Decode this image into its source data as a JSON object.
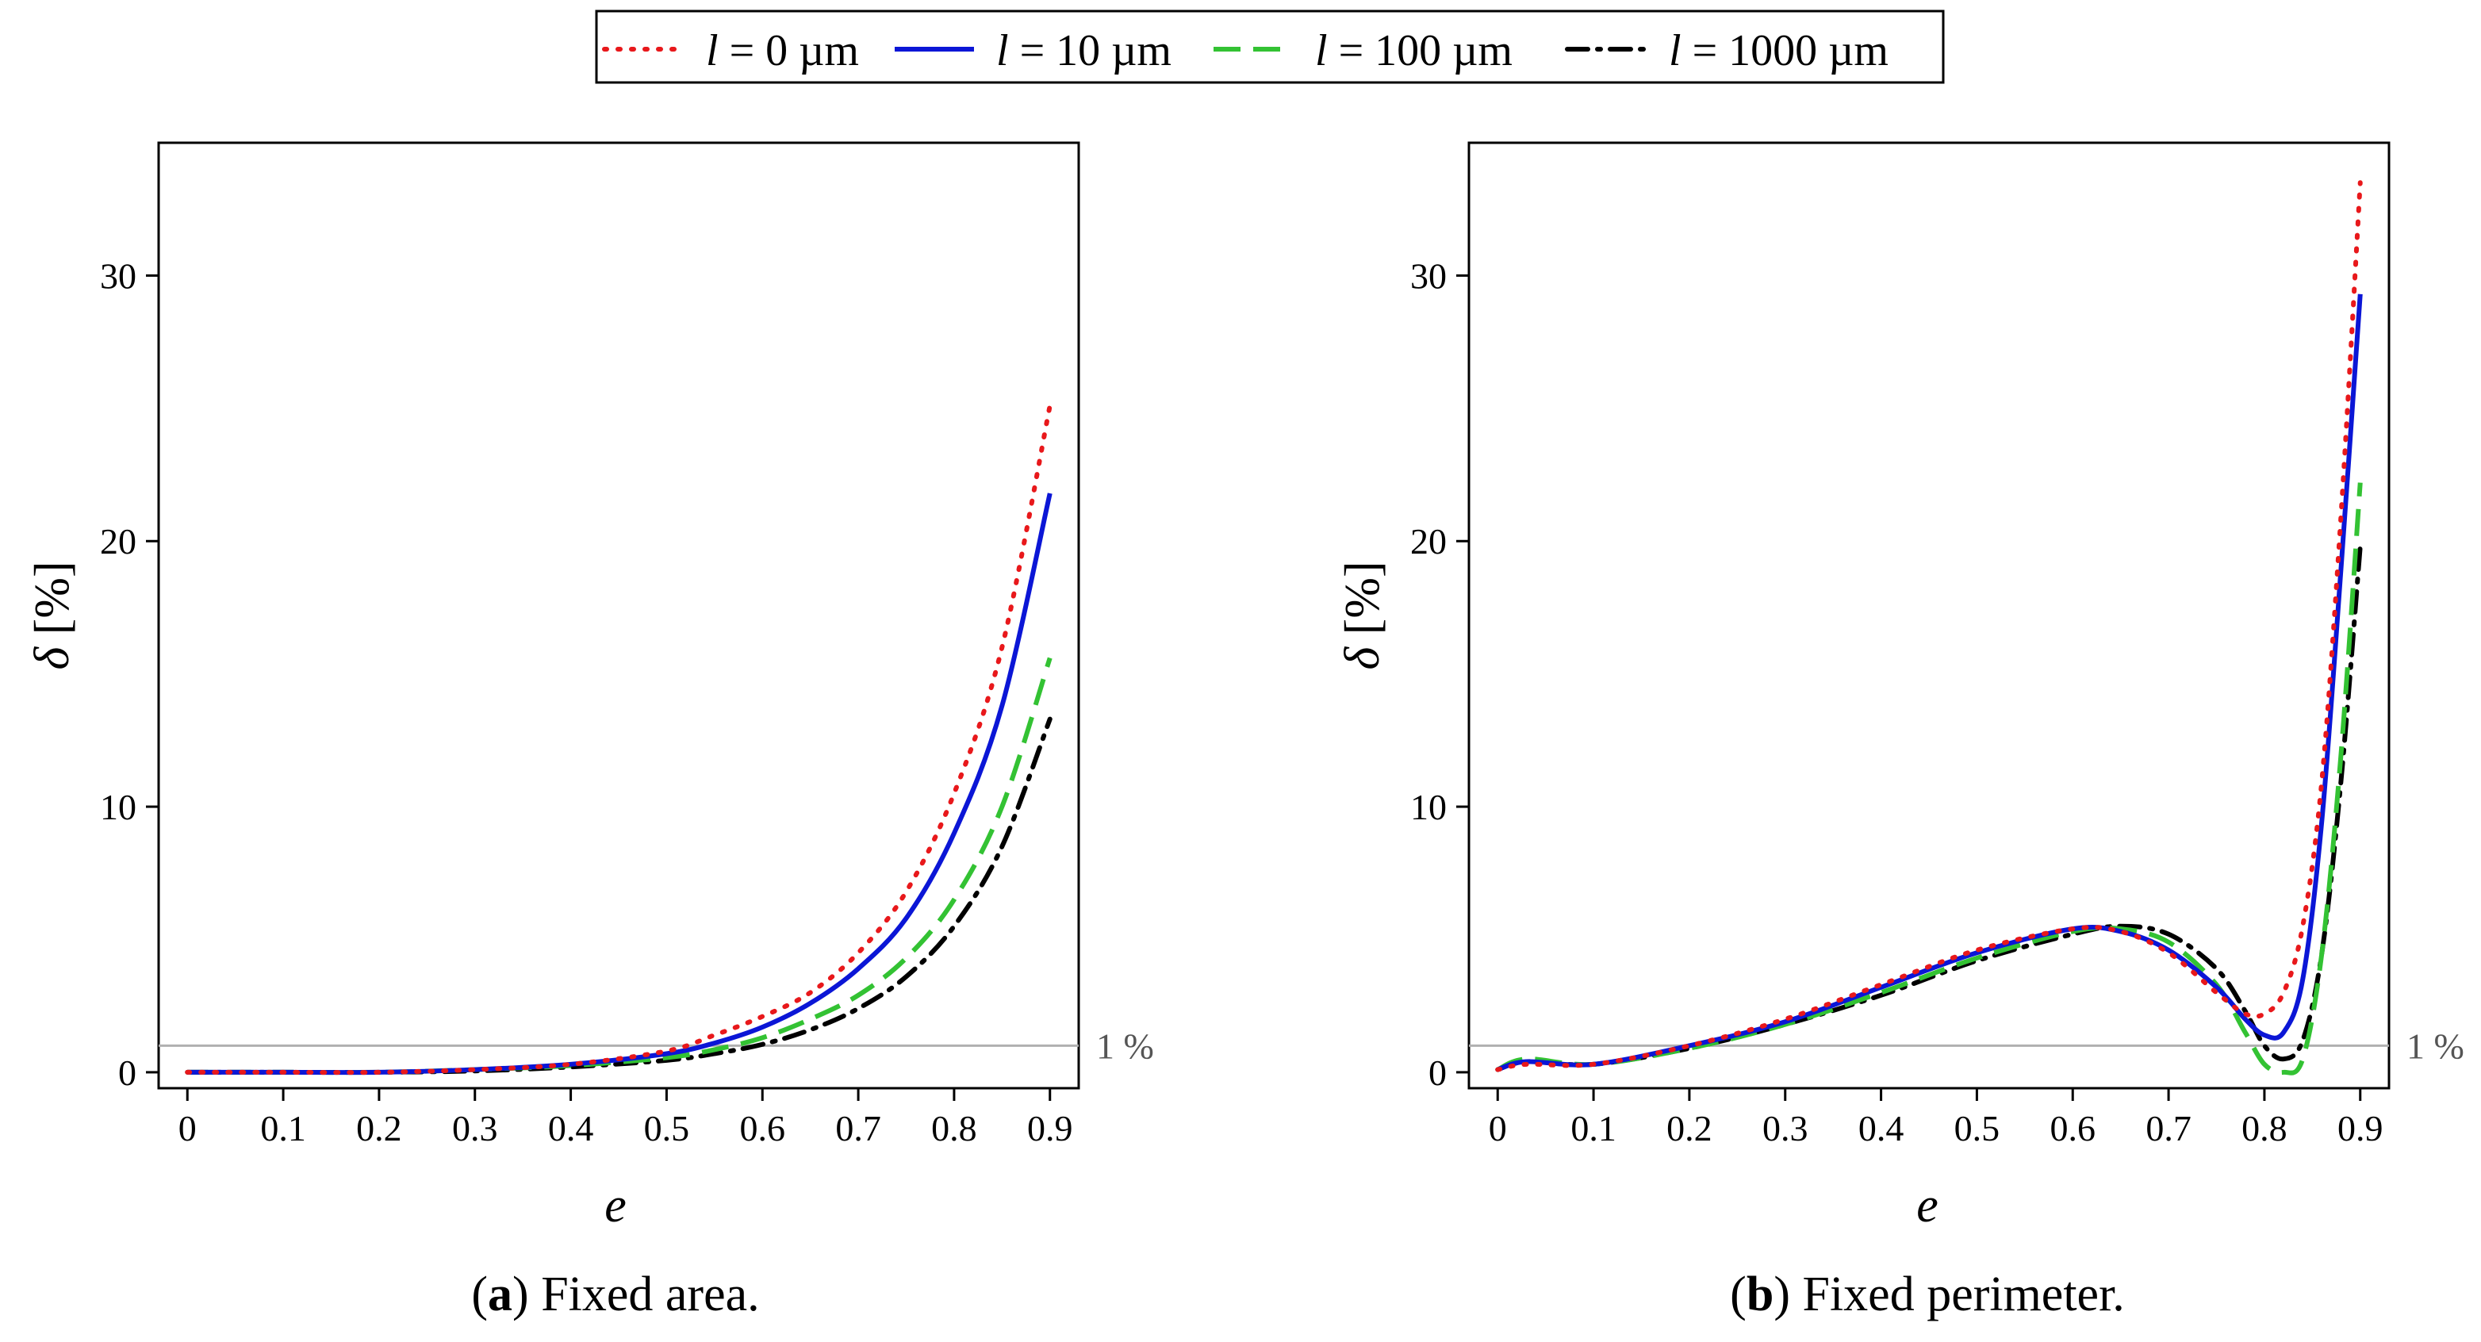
{
  "legend": {
    "entries": [
      {
        "var": "l",
        "eq": " = ",
        "value": "0 µm",
        "color": "#e8181b",
        "dash": "dotted"
      },
      {
        "var": "l",
        "eq": " = ",
        "value": "10 µm",
        "color": "#0b16d6",
        "dash": "solid"
      },
      {
        "var": "l",
        "eq": " = ",
        "value": "100 µm",
        "color": "#33c233",
        "dash": "dashed"
      },
      {
        "var": "l",
        "eq": " = ",
        "value": "1000 µm",
        "color": "#000000",
        "dash": "dashdot"
      }
    ]
  },
  "chart_data": [
    {
      "type": "line",
      "panel_letter": "a",
      "caption_open": "(",
      "caption_close": ")",
      "caption_text": " Fixed area.",
      "xlabel": "e",
      "ylabel_sym": "δ",
      "ylabel_unit": " [%]",
      "xlim": [
        -0.03,
        0.93
      ],
      "ylim": [
        -0.6,
        35
      ],
      "xticks": [
        0,
        0.1,
        0.2,
        0.3,
        0.4,
        0.5,
        0.6,
        0.7,
        0.8,
        0.9
      ],
      "xtick_labels": [
        "0",
        "0.1",
        "0.2",
        "0.3",
        "0.4",
        "0.5",
        "0.6",
        "0.7",
        "0.8",
        "0.9"
      ],
      "yticks": [
        0,
        10,
        20,
        30
      ],
      "ytick_labels": [
        "0",
        "10",
        "20",
        "30"
      ],
      "reference_line": {
        "y": 1,
        "label": "1 %",
        "color": "#b0b0b0"
      },
      "series": [
        {
          "name": "l = 0 µm",
          "color": "#e8181b",
          "dash": "dotted",
          "x": [
            0,
            0.1,
            0.2,
            0.3,
            0.4,
            0.5,
            0.55,
            0.6,
            0.65,
            0.7,
            0.75,
            0.8,
            0.85,
            0.9
          ],
          "y": [
            0,
            0,
            0,
            0.1,
            0.3,
            0.8,
            1.4,
            2.1,
            3.0,
            4.5,
            6.8,
            10.5,
            16,
            25.1
          ]
        },
        {
          "name": "l = 10 µm",
          "color": "#0b16d6",
          "dash": "solid",
          "x": [
            0,
            0.1,
            0.2,
            0.3,
            0.4,
            0.5,
            0.55,
            0.6,
            0.65,
            0.7,
            0.75,
            0.8,
            0.85,
            0.9
          ],
          "y": [
            0,
            0,
            0,
            0.1,
            0.3,
            0.7,
            1.1,
            1.7,
            2.6,
            3.9,
            5.8,
            9.0,
            13.8,
            21.8
          ]
        },
        {
          "name": "l = 100 µm",
          "color": "#33c233",
          "dash": "dashed",
          "x": [
            0,
            0.1,
            0.2,
            0.3,
            0.4,
            0.5,
            0.55,
            0.6,
            0.65,
            0.7,
            0.75,
            0.8,
            0.85,
            0.9
          ],
          "y": [
            0,
            0,
            0,
            0.1,
            0.25,
            0.55,
            0.85,
            1.3,
            2.0,
            2.9,
            4.3,
            6.5,
            10.0,
            15.6
          ]
        },
        {
          "name": "l = 1000 µm",
          "color": "#000000",
          "dash": "dashdot",
          "x": [
            0,
            0.1,
            0.2,
            0.3,
            0.4,
            0.5,
            0.55,
            0.6,
            0.65,
            0.7,
            0.75,
            0.8,
            0.85,
            0.9
          ],
          "y": [
            0,
            0,
            0,
            0.05,
            0.2,
            0.45,
            0.7,
            1.05,
            1.6,
            2.4,
            3.6,
            5.5,
            8.5,
            13.3
          ]
        }
      ]
    },
    {
      "type": "line",
      "panel_letter": "b",
      "caption_open": "(",
      "caption_close": ")",
      "caption_text": " Fixed perimeter.",
      "xlabel": "e",
      "ylabel_sym": "δ",
      "ylabel_unit": " [%]",
      "xlim": [
        -0.03,
        0.93
      ],
      "ylim": [
        -0.6,
        35
      ],
      "xticks": [
        0,
        0.1,
        0.2,
        0.3,
        0.4,
        0.5,
        0.6,
        0.7,
        0.8,
        0.9
      ],
      "xtick_labels": [
        "0",
        "0.1",
        "0.2",
        "0.3",
        "0.4",
        "0.5",
        "0.6",
        "0.7",
        "0.8",
        "0.9"
      ],
      "yticks": [
        0,
        10,
        20,
        30
      ],
      "ytick_labels": [
        "0",
        "10",
        "20",
        "30"
      ],
      "reference_line": {
        "y": 1,
        "label": "1 %",
        "color": "#b0b0b0"
      },
      "series": [
        {
          "name": "l = 0 µm",
          "color": "#e8181b",
          "dash": "dotted",
          "x": [
            0,
            0.03,
            0.1,
            0.2,
            0.3,
            0.4,
            0.5,
            0.6,
            0.65,
            0.7,
            0.75,
            0.78,
            0.8,
            0.82,
            0.84,
            0.86,
            0.88,
            0.9
          ],
          "y": [
            0.1,
            0.3,
            0.3,
            1.0,
            2.0,
            3.3,
            4.6,
            5.4,
            5.3,
            4.5,
            3.0,
            2.2,
            2.2,
            3.0,
            5.5,
            11,
            21,
            33.5
          ]
        },
        {
          "name": "l = 10 µm",
          "color": "#0b16d6",
          "dash": "solid",
          "x": [
            0,
            0.03,
            0.1,
            0.2,
            0.3,
            0.4,
            0.5,
            0.6,
            0.65,
            0.7,
            0.75,
            0.78,
            0.8,
            0.82,
            0.84,
            0.86,
            0.88,
            0.9
          ],
          "y": [
            0.1,
            0.4,
            0.3,
            1.0,
            1.9,
            3.2,
            4.5,
            5.4,
            5.3,
            4.6,
            3.2,
            2.0,
            1.4,
            1.5,
            3.5,
            9.5,
            19,
            29.3
          ]
        },
        {
          "name": "l = 100 µm",
          "color": "#33c233",
          "dash": "dashed",
          "x": [
            0,
            0.03,
            0.1,
            0.2,
            0.3,
            0.4,
            0.5,
            0.6,
            0.65,
            0.7,
            0.75,
            0.78,
            0.8,
            0.82,
            0.84,
            0.86,
            0.88,
            0.9
          ],
          "y": [
            0.1,
            0.5,
            0.3,
            0.9,
            1.8,
            3.0,
            4.3,
            5.3,
            5.4,
            4.9,
            3.3,
            1.5,
            0.3,
            0.0,
            0.5,
            4.5,
            12,
            22.2
          ]
        },
        {
          "name": "l = 1000 µm",
          "color": "#000000",
          "dash": "dashdot",
          "x": [
            0,
            0.03,
            0.1,
            0.2,
            0.3,
            0.4,
            0.5,
            0.6,
            0.65,
            0.7,
            0.75,
            0.78,
            0.8,
            0.82,
            0.84,
            0.86,
            0.88,
            0.9
          ],
          "y": [
            0.1,
            0.4,
            0.3,
            0.9,
            1.8,
            2.9,
            4.2,
            5.2,
            5.5,
            5.2,
            3.9,
            2.3,
            1.0,
            0.5,
            1.2,
            4.5,
            11,
            19.8
          ]
        }
      ]
    }
  ]
}
